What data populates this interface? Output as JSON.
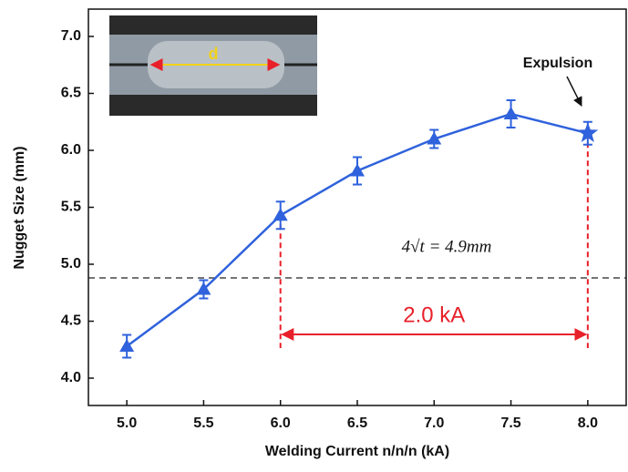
{
  "chart_data": {
    "type": "line",
    "x_label": "Welding Current n/n/n (kA)",
    "y_label": "Nugget Size (mm)",
    "x": [
      5.0,
      5.5,
      6.0,
      6.5,
      7.0,
      7.5,
      8.0
    ],
    "series": [
      {
        "color": "#2f62dc",
        "values": [
          4.28,
          4.78,
          5.43,
          5.82,
          6.1,
          6.32,
          6.15
        ],
        "errors": [
          0.1,
          0.08,
          0.12,
          0.12,
          0.08,
          0.12,
          0.1
        ],
        "markers": [
          "triangle",
          "triangle",
          "triangle",
          "triangle",
          "triangle",
          "triangle",
          "star"
        ]
      }
    ],
    "xlim": [
      4.75,
      8.25
    ],
    "ylim": [
      3.76,
      7.24
    ],
    "xticks": [
      {
        "value": 5,
        "label": "5.0"
      },
      {
        "value": 5.5,
        "label": "5.5"
      },
      {
        "value": 6,
        "label": "6.0"
      },
      {
        "value": 6.5,
        "label": "6.5"
      },
      {
        "value": 7,
        "label": "7.0"
      },
      {
        "value": 7.5,
        "label": "7.5"
      },
      {
        "value": 8,
        "label": "8.0"
      }
    ],
    "yticks": [
      {
        "value": 4,
        "label": "4.0"
      },
      {
        "value": 4.5,
        "label": "4.5"
      },
      {
        "value": 5,
        "label": "5.0"
      },
      {
        "value": 5.5,
        "label": "5.5"
      },
      {
        "value": 6,
        "label": "6.0"
      },
      {
        "value": 6.5,
        "label": "6.5"
      },
      {
        "value": 7,
        "label": "7.0"
      }
    ],
    "threshold": {
      "value": 4.88,
      "label": "4√t = 4.9mm"
    },
    "range": {
      "x": [
        6.0,
        8.0
      ],
      "label": "2.0 kA",
      "color": "#e8202a"
    },
    "annotation": "Expulsion",
    "inset_label": "d"
  }
}
